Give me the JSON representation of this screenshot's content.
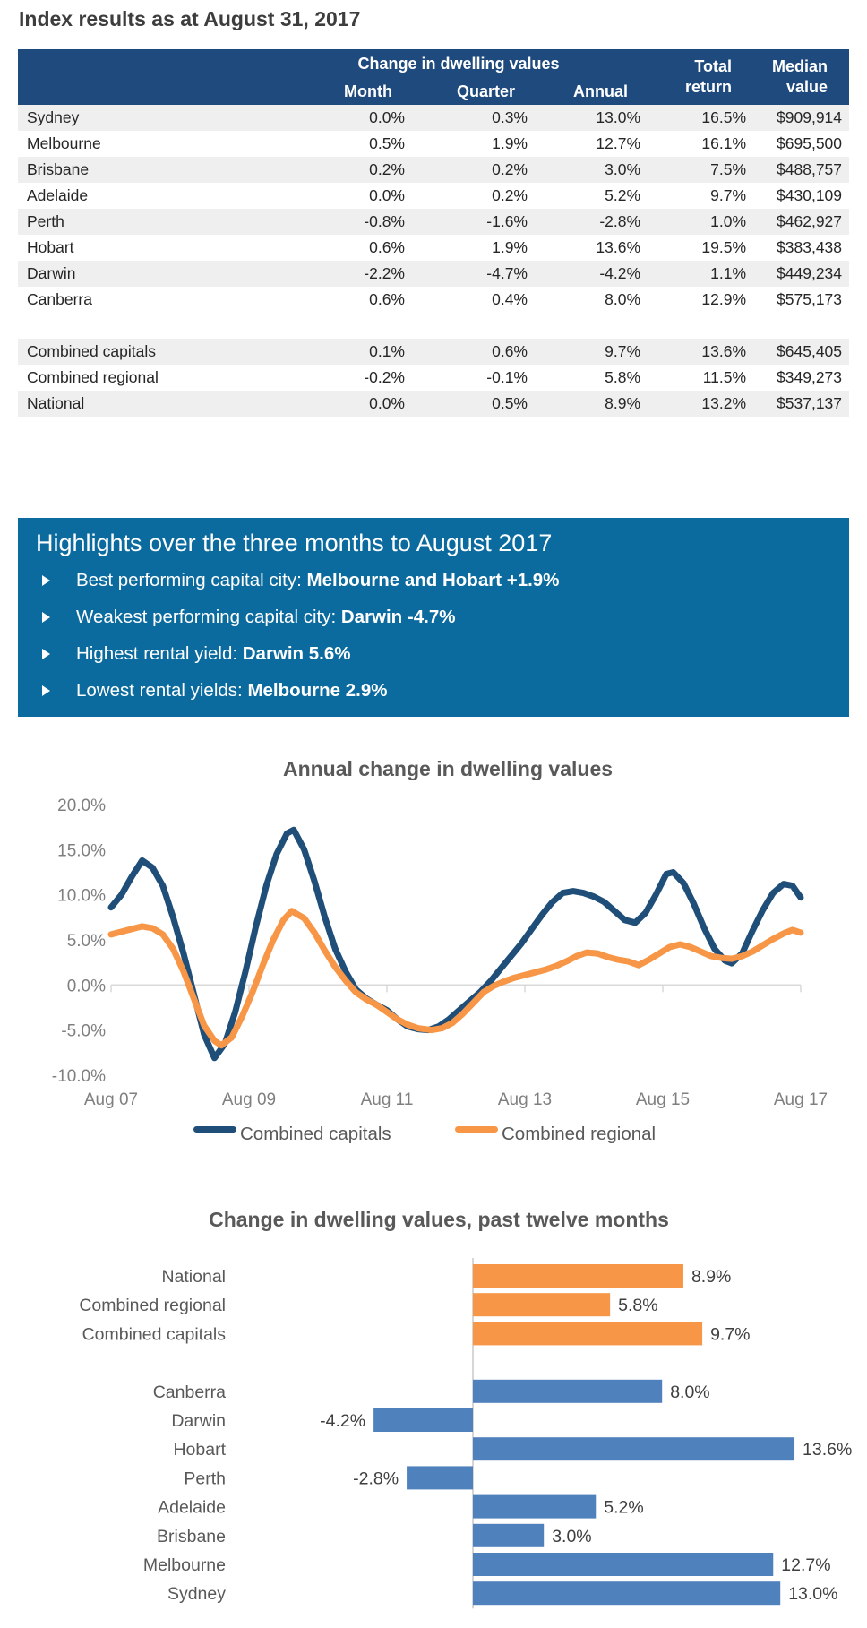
{
  "page": {
    "title": "Index results as at August 31, 2017"
  },
  "table": {
    "header": {
      "group": "Change in dwelling values",
      "month": "Month",
      "quarter": "Quarter",
      "annual": "Annual",
      "total_line1": "Total",
      "total_line2": "return",
      "median_line1": "Median",
      "median_line2": "value"
    },
    "rows": [
      {
        "name": "Sydney",
        "month": "0.0%",
        "quarter": "0.3%",
        "annual": "13.0%",
        "total": "16.5%",
        "median": "$909,914",
        "shade": true
      },
      {
        "name": "Melbourne",
        "month": "0.5%",
        "quarter": "1.9%",
        "annual": "12.7%",
        "total": "16.1%",
        "median": "$695,500",
        "shade": false
      },
      {
        "name": "Brisbane",
        "month": "0.2%",
        "quarter": "0.2%",
        "annual": "3.0%",
        "total": "7.5%",
        "median": "$488,757",
        "shade": true
      },
      {
        "name": "Adelaide",
        "month": "0.0%",
        "quarter": "0.2%",
        "annual": "5.2%",
        "total": "9.7%",
        "median": "$430,109",
        "shade": false
      },
      {
        "name": "Perth",
        "month": "-0.8%",
        "quarter": "-1.6%",
        "annual": "-2.8%",
        "total": "1.0%",
        "median": "$462,927",
        "shade": true
      },
      {
        "name": "Hobart",
        "month": "0.6%",
        "quarter": "1.9%",
        "annual": "13.6%",
        "total": "19.5%",
        "median": "$383,438",
        "shade": false
      },
      {
        "name": "Darwin",
        "month": "-2.2%",
        "quarter": "-4.7%",
        "annual": "-4.2%",
        "total": "1.1%",
        "median": "$449,234",
        "shade": true
      },
      {
        "name": "Canberra",
        "month": "0.6%",
        "quarter": "0.4%",
        "annual": "8.0%",
        "total": "12.9%",
        "median": "$575,173",
        "shade": false
      },
      {
        "spacer": true
      },
      {
        "name": "Combined capitals",
        "month": "0.1%",
        "quarter": "0.6%",
        "annual": "9.7%",
        "total": "13.6%",
        "median": "$645,405",
        "shade": true
      },
      {
        "name": "Combined regional",
        "month": "-0.2%",
        "quarter": "-0.1%",
        "annual": "5.8%",
        "total": "11.5%",
        "median": "$349,273",
        "shade": false
      },
      {
        "name": "National",
        "month": "0.0%",
        "quarter": "0.5%",
        "annual": "8.9%",
        "total": "13.2%",
        "median": "$537,137",
        "shade": true
      }
    ]
  },
  "highlights": {
    "title": "Highlights over the three months to August 2017",
    "items": [
      {
        "label": "Best performing capital city: ",
        "value": "Melbourne and Hobart +1.9%"
      },
      {
        "label": "Weakest performing capital city: ",
        "value": "Darwin -4.7%"
      },
      {
        "label": "Highest rental yield: ",
        "value": "Darwin 5.6%"
      },
      {
        "label": "Lowest rental yields: ",
        "value": "Melbourne 2.9%"
      }
    ]
  },
  "chart_data": [
    {
      "type": "line",
      "title": "Annual change in dwelling values",
      "xlabel": "",
      "ylabel": "",
      "x_unit": "years since Aug 2007",
      "xlim": [
        0,
        10
      ],
      "ylim": [
        -10,
        20
      ],
      "grid": "zero-axis-only",
      "legend_position": "bottom",
      "x_ticks": {
        "positions": [
          0,
          2,
          4,
          6,
          8,
          10
        ],
        "labels": [
          "Aug 07",
          "Aug 09",
          "Aug 11",
          "Aug 13",
          "Aug 15",
          "Aug 17"
        ]
      },
      "y_ticks": {
        "values": [
          20,
          15,
          10,
          5,
          0,
          -5,
          -10
        ],
        "labels": [
          "20.0%",
          "15.0%",
          "10.0%",
          "5.0%",
          "0.0%",
          "-5.0%",
          "-10.0%"
        ]
      },
      "series": [
        {
          "name": "Combined capitals",
          "color": "#1F4E79",
          "points": [
            [
              0,
              8.6
            ],
            [
              0.15,
              10.0
            ],
            [
              0.3,
              12.0
            ],
            [
              0.45,
              13.8
            ],
            [
              0.6,
              13.0
            ],
            [
              0.75,
              11.0
            ],
            [
              0.9,
              7.5
            ],
            [
              1.05,
              3.5
            ],
            [
              1.2,
              -1.0
            ],
            [
              1.35,
              -5.5
            ],
            [
              1.5,
              -8.1
            ],
            [
              1.65,
              -6.5
            ],
            [
              1.8,
              -3.0
            ],
            [
              1.95,
              1.5
            ],
            [
              2.1,
              6.5
            ],
            [
              2.25,
              11.0
            ],
            [
              2.4,
              14.5
            ],
            [
              2.55,
              16.8
            ],
            [
              2.65,
              17.2
            ],
            [
              2.8,
              15.0
            ],
            [
              2.95,
              11.5
            ],
            [
              3.1,
              7.5
            ],
            [
              3.25,
              4.0
            ],
            [
              3.4,
              1.5
            ],
            [
              3.55,
              -0.5
            ],
            [
              3.7,
              -1.5
            ],
            [
              3.85,
              -2.2
            ],
            [
              4.0,
              -2.8
            ],
            [
              4.15,
              -3.8
            ],
            [
              4.3,
              -4.6
            ],
            [
              4.45,
              -4.9
            ],
            [
              4.6,
              -5.0
            ],
            [
              4.75,
              -4.6
            ],
            [
              4.9,
              -3.8
            ],
            [
              5.05,
              -2.8
            ],
            [
              5.2,
              -1.8
            ],
            [
              5.35,
              -0.8
            ],
            [
              5.5,
              0.4
            ],
            [
              5.65,
              1.8
            ],
            [
              5.8,
              3.2
            ],
            [
              5.95,
              4.6
            ],
            [
              6.1,
              6.2
            ],
            [
              6.25,
              7.8
            ],
            [
              6.4,
              9.2
            ],
            [
              6.55,
              10.2
            ],
            [
              6.7,
              10.4
            ],
            [
              6.85,
              10.2
            ],
            [
              7.0,
              9.8
            ],
            [
              7.15,
              9.2
            ],
            [
              7.3,
              8.2
            ],
            [
              7.45,
              7.2
            ],
            [
              7.6,
              6.9
            ],
            [
              7.75,
              8.0
            ],
            [
              7.9,
              10.0
            ],
            [
              8.05,
              12.3
            ],
            [
              8.15,
              12.5
            ],
            [
              8.3,
              11.3
            ],
            [
              8.45,
              9.0
            ],
            [
              8.6,
              6.3
            ],
            [
              8.75,
              4.0
            ],
            [
              8.9,
              2.7
            ],
            [
              9.0,
              2.4
            ],
            [
              9.15,
              3.5
            ],
            [
              9.3,
              6.0
            ],
            [
              9.45,
              8.3
            ],
            [
              9.6,
              10.2
            ],
            [
              9.75,
              11.2
            ],
            [
              9.88,
              11.0
            ],
            [
              10,
              9.7
            ]
          ]
        },
        {
          "name": "Combined regional",
          "color": "#F79646",
          "points": [
            [
              0,
              5.6
            ],
            [
              0.15,
              5.9
            ],
            [
              0.3,
              6.2
            ],
            [
              0.45,
              6.5
            ],
            [
              0.6,
              6.3
            ],
            [
              0.75,
              5.6
            ],
            [
              0.9,
              4.0
            ],
            [
              1.05,
              1.5
            ],
            [
              1.2,
              -1.5
            ],
            [
              1.35,
              -4.5
            ],
            [
              1.5,
              -6.2
            ],
            [
              1.6,
              -6.7
            ],
            [
              1.75,
              -5.8
            ],
            [
              1.9,
              -3.5
            ],
            [
              2.05,
              -0.8
            ],
            [
              2.2,
              2.2
            ],
            [
              2.35,
              5.0
            ],
            [
              2.5,
              7.2
            ],
            [
              2.62,
              8.2
            ],
            [
              2.8,
              7.4
            ],
            [
              2.95,
              5.8
            ],
            [
              3.1,
              3.8
            ],
            [
              3.25,
              2.0
            ],
            [
              3.4,
              0.5
            ],
            [
              3.55,
              -0.8
            ],
            [
              3.7,
              -1.6
            ],
            [
              3.85,
              -2.2
            ],
            [
              4.0,
              -3.0
            ],
            [
              4.15,
              -3.8
            ],
            [
              4.3,
              -4.4
            ],
            [
              4.45,
              -4.8
            ],
            [
              4.65,
              -5.0
            ],
            [
              4.8,
              -4.8
            ],
            [
              4.95,
              -4.2
            ],
            [
              5.1,
              -3.2
            ],
            [
              5.25,
              -2.0
            ],
            [
              5.4,
              -0.8
            ],
            [
              5.55,
              -0.1
            ],
            [
              5.7,
              0.4
            ],
            [
              5.85,
              0.8
            ],
            [
              6.0,
              1.1
            ],
            [
              6.15,
              1.4
            ],
            [
              6.3,
              1.7
            ],
            [
              6.45,
              2.1
            ],
            [
              6.6,
              2.6
            ],
            [
              6.75,
              3.2
            ],
            [
              6.9,
              3.6
            ],
            [
              7.05,
              3.5
            ],
            [
              7.2,
              3.1
            ],
            [
              7.35,
              2.8
            ],
            [
              7.5,
              2.6
            ],
            [
              7.65,
              2.2
            ],
            [
              7.8,
              2.8
            ],
            [
              7.95,
              3.5
            ],
            [
              8.1,
              4.2
            ],
            [
              8.25,
              4.5
            ],
            [
              8.4,
              4.2
            ],
            [
              8.55,
              3.7
            ],
            [
              8.7,
              3.2
            ],
            [
              8.85,
              3.0
            ],
            [
              9.0,
              2.9
            ],
            [
              9.15,
              3.2
            ],
            [
              9.3,
              3.7
            ],
            [
              9.45,
              4.4
            ],
            [
              9.6,
              5.1
            ],
            [
              9.75,
              5.7
            ],
            [
              9.88,
              6.1
            ],
            [
              10,
              5.8
            ]
          ]
        }
      ]
    },
    {
      "type": "bar",
      "title": "Change in dwelling values, past twelve months",
      "orientation": "horizontal",
      "xlabel": "",
      "ylabel": "",
      "categories": [
        "National",
        "Combined regional",
        "Combined capitals",
        "Canberra",
        "Darwin",
        "Hobart",
        "Perth",
        "Adelaide",
        "Brisbane",
        "Melbourne",
        "Sydney"
      ],
      "values": [
        8.9,
        5.8,
        9.7,
        8.0,
        -4.2,
        13.6,
        -2.8,
        5.2,
        3.0,
        12.7,
        13.0
      ],
      "labels": [
        "8.9%",
        "5.8%",
        "9.7%",
        "8.0%",
        "-4.2%",
        "13.6%",
        "-2.8%",
        "5.2%",
        "3.0%",
        "12.7%",
        "13.0%"
      ],
      "bar_colors": [
        "#F79646",
        "#F79646",
        "#F79646",
        "#4F81BD",
        "#4F81BD",
        "#4F81BD",
        "#4F81BD",
        "#4F81BD",
        "#4F81BD",
        "#4F81BD",
        "#4F81BD"
      ],
      "group_gap_after_index": 2
    }
  ],
  "colors": {
    "header_navy": "#1F4A7D",
    "row_stripe": "#EFEFEF",
    "highlight_blue": "#0B6A9E",
    "capitals_line": "#1F4E79",
    "regional_line": "#F79646",
    "bar_blue": "#4F81BD",
    "bar_orange": "#F79646",
    "axis_gray": "#D9D9D9",
    "tick_label_gray": "#7F7F7F",
    "chart_title_gray": "#595959"
  }
}
